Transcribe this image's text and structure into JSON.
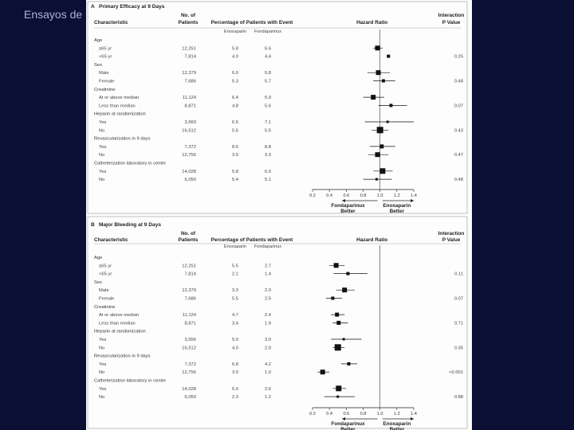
{
  "slide": {
    "title": "Ensayos de"
  },
  "headers": {
    "characteristic": "Characteristic",
    "patients": [
      "No. of",
      "Patients"
    ],
    "percentage": "Percentage of Patients with Event",
    "arm1": "Enoxaparin",
    "arm2": "Fondaparinux",
    "hazard": "Hazard Ratio",
    "interaction": [
      "Interaction",
      "P Value"
    ]
  },
  "axis": {
    "ticks": [
      0.2,
      0.4,
      0.6,
      0.8,
      1.0,
      1.2,
      1.4
    ],
    "tick_labels": [
      "0.2",
      "0.4",
      "0.6",
      "0.8",
      "1.0",
      "1.2",
      "1.4"
    ],
    "xlim": [
      0.2,
      1.4
    ],
    "left_label": [
      "Fondaparinux",
      "Better"
    ],
    "right_label": [
      "Enoxaparin",
      "Better"
    ]
  },
  "panels": [
    {
      "letter": "A",
      "title": "Primary Efficacy at 9 Days",
      "groups": [
        {
          "name": "Age",
          "pvalue": "0.25",
          "rows": [
            {
              "label": "≥65 yr",
              "n": "12,251",
              "enox": "5.8",
              "fonda": "6.6",
              "hr": 0.97,
              "lo": 0.92,
              "hi": 1.03,
              "size": 6
            },
            {
              "label": "<65 yr",
              "n": "7,814",
              "enox": "4.0",
              "fonda": "4.4",
              "hr": 1.1,
              "lo": 1.08,
              "hi": 1.12,
              "size": 4
            }
          ]
        },
        {
          "name": "Sex",
          "pvalue": "0.48",
          "rows": [
            {
              "label": "Male",
              "n": "12,379",
              "enox": "6.0",
              "fonda": "5.8",
              "hr": 0.98,
              "lo": 0.85,
              "hi": 1.12,
              "size": 6
            },
            {
              "label": "Female",
              "n": "7,686",
              "enox": "5.3",
              "fonda": "5.7",
              "hr": 1.04,
              "lo": 0.92,
              "hi": 1.18,
              "size": 4
            }
          ]
        },
        {
          "name": "Creatinine",
          "pvalue": "0.07",
          "rows": [
            {
              "label": "At or above median",
              "n": "11,124",
              "enox": "6.4",
              "fonda": "5.9",
              "hr": 0.92,
              "lo": 0.8,
              "hi": 1.05,
              "size": 6
            },
            {
              "label": "Less than median",
              "n": "8,871",
              "enox": "4.8",
              "fonda": "5.6",
              "hr": 1.13,
              "lo": 0.98,
              "hi": 1.32,
              "size": 4
            }
          ]
        },
        {
          "name": "Heparin at randomization",
          "pvalue": "0.43",
          "rows": [
            {
              "label": "Yes",
              "n": "3,560",
              "enox": "6.5",
              "fonda": "7.1",
              "hr": 1.09,
              "lo": 0.82,
              "hi": 1.4,
              "size": 3
            },
            {
              "label": "No",
              "n": "16,512",
              "enox": "5.6",
              "fonda": "5.5",
              "hr": 1.0,
              "lo": 0.9,
              "hi": 1.1,
              "size": 8
            }
          ]
        },
        {
          "name": "Revascularization in 9 days",
          "pvalue": "0.47",
          "rows": [
            {
              "label": "Yes",
              "n": "7,372",
              "enox": "8.6",
              "fonda": "8.8",
              "hr": 1.02,
              "lo": 0.88,
              "hi": 1.18,
              "size": 5
            },
            {
              "label": "No",
              "n": "12,756",
              "enox": "3.5",
              "fonda": "3.3",
              "hr": 0.97,
              "lo": 0.86,
              "hi": 1.1,
              "size": 6
            }
          ]
        },
        {
          "name": "Catheterization laboratory in center",
          "pvalue": "0.48",
          "rows": [
            {
              "label": "Yes",
              "n": "14,028",
              "enox": "5.8",
              "fonda": "6.0",
              "hr": 1.03,
              "lo": 0.92,
              "hi": 1.15,
              "size": 7
            },
            {
              "label": "No",
              "n": "6,050",
              "enox": "5.4",
              "fonda": "5.1",
              "hr": 0.96,
              "lo": 0.8,
              "hi": 1.14,
              "size": 3
            }
          ]
        }
      ]
    },
    {
      "letter": "B",
      "title": "Major Bleeding at 9 Days",
      "groups": [
        {
          "name": "Age",
          "pvalue": "0.11",
          "rows": [
            {
              "label": "≥65 yr",
              "n": "12,251",
              "enox": "5.5",
              "fonda": "2.7",
              "hr": 0.48,
              "lo": 0.4,
              "hi": 0.58,
              "size": 6
            },
            {
              "label": "<65 yr",
              "n": "7,814",
              "enox": "2.1",
              "fonda": "1.4",
              "hr": 0.62,
              "lo": 0.45,
              "hi": 0.85,
              "size": 4
            }
          ]
        },
        {
          "name": "Sex",
          "pvalue": "0.07",
          "rows": [
            {
              "label": "Male",
              "n": "12,379",
              "enox": "3.3",
              "fonda": "2.0",
              "hr": 0.58,
              "lo": 0.48,
              "hi": 0.7,
              "size": 6
            },
            {
              "label": "Female",
              "n": "7,686",
              "enox": "5.5",
              "fonda": "2.5",
              "hr": 0.44,
              "lo": 0.36,
              "hi": 0.55,
              "size": 4
            }
          ]
        },
        {
          "name": "Creatinine",
          "pvalue": "0.71",
          "rows": [
            {
              "label": "At or above median",
              "n": "11,124",
              "enox": "4.7",
              "fonda": "2.4",
              "hr": 0.49,
              "lo": 0.42,
              "hi": 0.58,
              "size": 5
            },
            {
              "label": "Less than median",
              "n": "8,871",
              "enox": "3.4",
              "fonda": "1.9",
              "hr": 0.51,
              "lo": 0.44,
              "hi": 0.62,
              "size": 5
            }
          ]
        },
        {
          "name": "Heparin at randomization",
          "pvalue": "0.35",
          "rows": [
            {
              "label": "Yes",
              "n": "3,556",
              "enox": "5.0",
              "fonda": "3.0",
              "hr": 0.57,
              "lo": 0.42,
              "hi": 0.78,
              "size": 3
            },
            {
              "label": "No",
              "n": "16,512",
              "enox": "4.0",
              "fonda": "2.0",
              "hr": 0.5,
              "lo": 0.44,
              "hi": 0.58,
              "size": 8
            }
          ]
        },
        {
          "name": "Revascularization in 9 days",
          "pvalue": "<0.001",
          "rows": [
            {
              "label": "Yes",
              "n": "7,372",
              "enox": "6.8",
              "fonda": "4.2",
              "hr": 0.63,
              "lo": 0.54,
              "hi": 0.73,
              "size": 4
            },
            {
              "label": "No",
              "n": "12,756",
              "enox": "3.0",
              "fonda": "1.0",
              "hr": 0.32,
              "lo": 0.26,
              "hi": 0.4,
              "size": 6
            }
          ]
        },
        {
          "name": "Catheterization laboratory in center",
          "pvalue": "0.88",
          "rows": [
            {
              "label": "Yes",
              "n": "14,028",
              "enox": "5.0",
              "fonda": "2.6",
              "hr": 0.51,
              "lo": 0.44,
              "hi": 0.6,
              "size": 7
            },
            {
              "label": "No",
              "n": "6,050",
              "enox": "2.3",
              "fonda": "1.2",
              "hr": 0.5,
              "lo": 0.34,
              "hi": 0.7,
              "size": 3
            }
          ]
        }
      ]
    }
  ]
}
